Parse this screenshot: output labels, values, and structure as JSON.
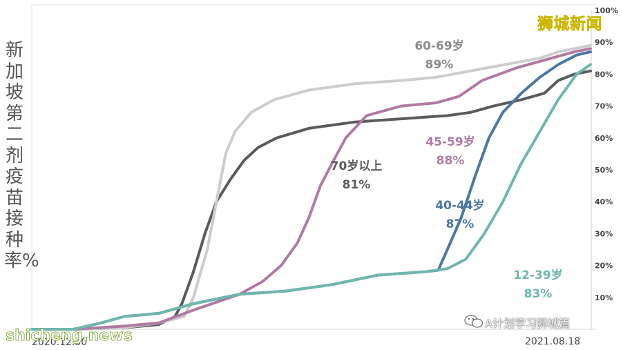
{
  "title_vertical": "新加坡第二剂疫苗接种率%",
  "brand_label": "狮城新闻",
  "watermark_left": "shicheng.news",
  "watermark_right": "A计划学习狮城篇",
  "colors": {
    "age_70_plus": "#5a5b5d",
    "age_60_69": "#cdcdcd",
    "age_45_59": "#b07aa2",
    "age_40_44": "#4b77a4",
    "age_12_39": "#6fb6ad"
  },
  "chart_data": {
    "type": "line",
    "x_range": [
      "2020.12.30",
      "2021.08.18"
    ],
    "x_tick_labels": [
      "2020.12.30",
      "2021.08.18"
    ],
    "y_range": [
      0,
      100
    ],
    "y_unit": "%",
    "y_ticks": [
      "10%",
      "20%",
      "30%",
      "40%",
      "50%",
      "60%",
      "70%",
      "80%",
      "90%",
      "100%"
    ],
    "series": [
      {
        "name": "70岁以上",
        "label": "81%",
        "color_key": "age_70_plus",
        "points": [
          [
            0,
            0
          ],
          [
            18,
            0
          ],
          [
            40,
            0.5
          ],
          [
            55,
            1.5
          ],
          [
            62,
            4
          ],
          [
            65,
            8
          ],
          [
            70,
            18
          ],
          [
            75,
            30
          ],
          [
            80,
            40
          ],
          [
            86,
            47
          ],
          [
            92,
            53
          ],
          [
            98,
            57
          ],
          [
            106,
            60
          ],
          [
            120,
            63
          ],
          [
            140,
            65
          ],
          [
            160,
            66
          ],
          [
            180,
            67
          ],
          [
            190,
            68
          ],
          [
            200,
            70
          ],
          [
            212,
            72
          ],
          [
            222,
            74
          ],
          [
            228,
            78
          ],
          [
            235,
            80
          ],
          [
            242,
            81
          ]
        ]
      },
      {
        "name": "60-69岁",
        "label": "89%",
        "color_key": "age_60_69",
        "points": [
          [
            0,
            0
          ],
          [
            18,
            0
          ],
          [
            40,
            0.5
          ],
          [
            55,
            2
          ],
          [
            66,
            4
          ],
          [
            70,
            10
          ],
          [
            76,
            25
          ],
          [
            80,
            40
          ],
          [
            84,
            55
          ],
          [
            88,
            62
          ],
          [
            95,
            68
          ],
          [
            105,
            72
          ],
          [
            120,
            75
          ],
          [
            140,
            77
          ],
          [
            160,
            78
          ],
          [
            175,
            79
          ],
          [
            190,
            81
          ],
          [
            205,
            83
          ],
          [
            220,
            85
          ],
          [
            228,
            87
          ],
          [
            235,
            88
          ],
          [
            242,
            89
          ]
        ]
      },
      {
        "name": "45-59岁",
        "label": "88%",
        "color_key": "age_45_59",
        "points": [
          [
            0,
            0
          ],
          [
            18,
            0
          ],
          [
            40,
            1
          ],
          [
            55,
            2
          ],
          [
            70,
            6
          ],
          [
            90,
            11
          ],
          [
            100,
            15
          ],
          [
            108,
            20
          ],
          [
            115,
            27
          ],
          [
            120,
            35
          ],
          [
            125,
            45
          ],
          [
            130,
            52
          ],
          [
            136,
            60
          ],
          [
            145,
            67
          ],
          [
            160,
            70
          ],
          [
            175,
            71
          ],
          [
            185,
            73
          ],
          [
            195,
            78
          ],
          [
            210,
            82
          ],
          [
            225,
            85
          ],
          [
            235,
            87
          ],
          [
            242,
            88
          ]
        ]
      },
      {
        "name": "40-44岁",
        "label": "87%",
        "color_key": "age_40_44",
        "points": [
          [
            0,
            0
          ],
          [
            18,
            0
          ],
          [
            30,
            2
          ],
          [
            40,
            4
          ],
          [
            55,
            5
          ],
          [
            70,
            8
          ],
          [
            90,
            11
          ],
          [
            110,
            12
          ],
          [
            130,
            14
          ],
          [
            150,
            17
          ],
          [
            170,
            18
          ],
          [
            176,
            18.5
          ],
          [
            180,
            25
          ],
          [
            186,
            35
          ],
          [
            192,
            48
          ],
          [
            198,
            60
          ],
          [
            204,
            68
          ],
          [
            212,
            74
          ],
          [
            220,
            79
          ],
          [
            228,
            83
          ],
          [
            236,
            86
          ],
          [
            242,
            87
          ]
        ]
      },
      {
        "name": "12-39岁",
        "label": "83%",
        "color_key": "age_12_39",
        "points": [
          [
            0,
            0
          ],
          [
            18,
            0
          ],
          [
            30,
            2
          ],
          [
            40,
            4
          ],
          [
            55,
            5
          ],
          [
            70,
            8
          ],
          [
            90,
            11
          ],
          [
            110,
            12
          ],
          [
            130,
            14
          ],
          [
            150,
            17
          ],
          [
            170,
            18
          ],
          [
            180,
            19
          ],
          [
            188,
            22
          ],
          [
            196,
            30
          ],
          [
            204,
            40
          ],
          [
            212,
            52
          ],
          [
            220,
            62
          ],
          [
            228,
            72
          ],
          [
            236,
            80
          ],
          [
            242,
            83
          ]
        ]
      }
    ]
  }
}
